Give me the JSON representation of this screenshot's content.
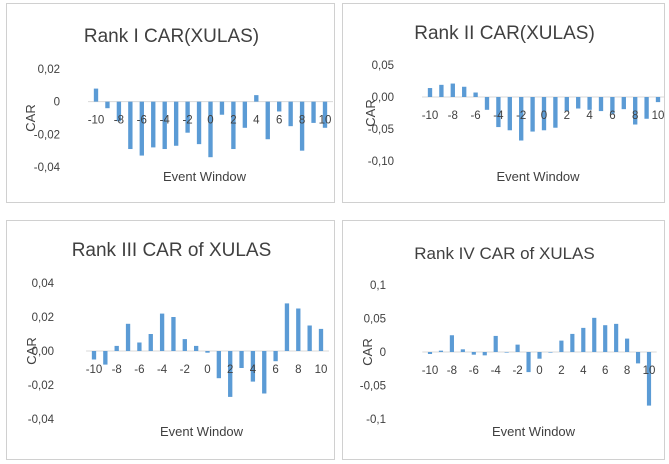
{
  "chart_data": [
    {
      "type": "bar",
      "title": "Rank I CAR(XULAS)",
      "xlabel": "Event Window",
      "ylabel": "CAR",
      "ylim": [
        -0.04,
        0.02
      ],
      "yticks": [
        "0,02",
        "0",
        "-0,02",
        "-0,04"
      ],
      "xticks": [
        "-10",
        "-8",
        "-6",
        "-4",
        "-2",
        "0",
        "2",
        "4",
        "6",
        "8",
        "10"
      ],
      "categories": [
        -10,
        -9,
        -8,
        -7,
        -6,
        -5,
        -4,
        -3,
        -2,
        -1,
        0,
        1,
        2,
        3,
        4,
        5,
        6,
        7,
        8,
        9,
        10
      ],
      "values": [
        0.008,
        -0.004,
        -0.012,
        -0.029,
        -0.033,
        -0.028,
        -0.029,
        -0.027,
        -0.019,
        -0.026,
        -0.034,
        -0.008,
        -0.029,
        -0.016,
        0.004,
        -0.023,
        -0.006,
        -0.015,
        -0.03,
        -0.013,
        -0.016
      ],
      "color": "#5b9bd5",
      "grid": false
    },
    {
      "type": "bar",
      "title": "Rank II CAR(XULAS)",
      "xlabel": "Event Window",
      "ylabel": "CAR",
      "ylim": [
        -0.1,
        0.05
      ],
      "yticks": [
        "0,05",
        "0,00",
        "-0,05",
        "-0,10"
      ],
      "xticks": [
        "-10",
        "-8",
        "-6",
        "-4",
        "-2",
        "0",
        "2",
        "4",
        "6",
        "8",
        "10"
      ],
      "categories": [
        -10,
        -9,
        -8,
        -7,
        -6,
        -5,
        -4,
        -3,
        -2,
        -1,
        0,
        1,
        2,
        3,
        4,
        5,
        6,
        7,
        8,
        9,
        10
      ],
      "values": [
        0.014,
        0.019,
        0.021,
        0.016,
        0.007,
        -0.02,
        -0.047,
        -0.052,
        -0.068,
        -0.054,
        -0.052,
        -0.048,
        -0.022,
        -0.018,
        -0.02,
        -0.022,
        -0.026,
        -0.019,
        -0.043,
        -0.034,
        -0.008
      ],
      "color": "#5b9bd5",
      "grid": false
    },
    {
      "type": "bar",
      "title": "Rank III CAR of XULAS",
      "xlabel": "Event Window",
      "ylabel": "CAR",
      "ylim": [
        -0.04,
        0.04
      ],
      "yticks": [
        "0,04",
        "0,02",
        "0,00",
        "-0,02",
        "-0,04"
      ],
      "xticks": [
        "-10",
        "-8",
        "-6",
        "-4",
        "-2",
        "0",
        "2",
        "4",
        "6",
        "8",
        "10"
      ],
      "categories": [
        -10,
        -9,
        -8,
        -7,
        -6,
        -5,
        -4,
        -3,
        -2,
        -1,
        0,
        1,
        2,
        3,
        4,
        5,
        6,
        7,
        8,
        9,
        10
      ],
      "values": [
        -0.005,
        -0.008,
        0.003,
        0.016,
        0.005,
        0.01,
        0.022,
        0.02,
        0.007,
        0.003,
        -0.001,
        -0.016,
        -0.027,
        -0.01,
        -0.018,
        -0.025,
        -0.006,
        0.028,
        0.025,
        0.015,
        0.013
      ],
      "color": "#5b9bd5",
      "grid": false
    },
    {
      "type": "bar",
      "title": "Rank IV CAR of XULAS",
      "xlabel": "Event Window",
      "ylabel": "CAR",
      "ylim": [
        -0.1,
        0.1
      ],
      "yticks": [
        "0,1",
        "0,05",
        "0",
        "-0,05",
        "-0,1"
      ],
      "xticks": [
        "-10",
        "-8",
        "-6",
        "-4",
        "-2",
        "0",
        "2",
        "4",
        "6",
        "8",
        "10"
      ],
      "categories": [
        -10,
        -9,
        -8,
        -7,
        -6,
        -5,
        -4,
        -3,
        -2,
        -1,
        0,
        1,
        2,
        3,
        4,
        5,
        6,
        7,
        8,
        9,
        10
      ],
      "values": [
        -0.003,
        0.002,
        0.025,
        0.004,
        -0.004,
        -0.005,
        0.024,
        0.0,
        0.011,
        -0.03,
        -0.01,
        0.0,
        0.017,
        0.027,
        0.036,
        0.051,
        0.04,
        0.042,
        0.02,
        -0.017,
        -0.08
      ],
      "color": "#5b9bd5",
      "grid": false
    }
  ]
}
